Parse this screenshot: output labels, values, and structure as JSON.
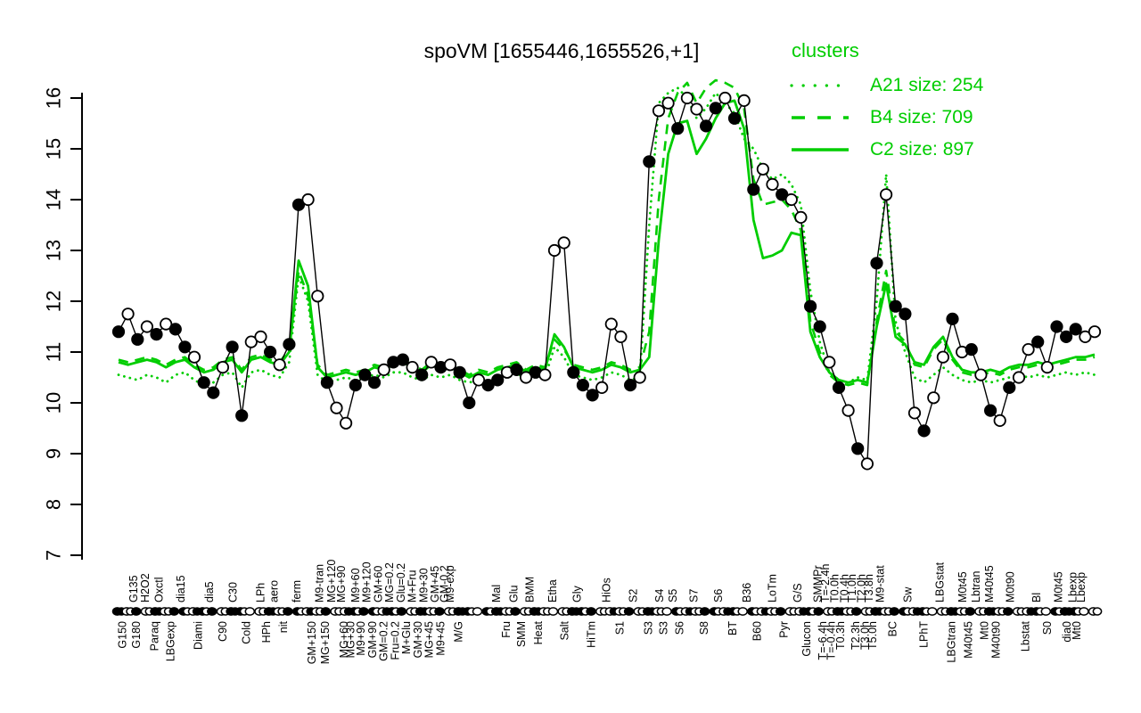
{
  "title": "spoVM [1655446,1655526,+1]",
  "legend": {
    "title": "clusters",
    "entries": [
      {
        "label": "A21 size: 254",
        "style": "dotted"
      },
      {
        "label": "B4 size: 709",
        "style": "dashed"
      },
      {
        "label": "C2 size: 897",
        "style": "solid"
      }
    ]
  },
  "colors": {
    "cluster_green": "#00CD00",
    "gene_black": "#000000",
    "background": "#FFFFFF"
  },
  "chart_data": {
    "type": "line",
    "title": "spoVM [1655446,1655526,+1]",
    "ylabel": "",
    "xlabel": "",
    "ylim": [
      7,
      16
    ],
    "yticks": [
      7,
      8,
      9,
      10,
      11,
      12,
      13,
      14,
      15,
      16
    ],
    "grid": false,
    "legend_position": "top-right",
    "n_samples": 104,
    "series": [
      {
        "name": "gene spoVM",
        "color": "#000000",
        "style": "solid-with-markers",
        "values": [
          11.4,
          11.75,
          11.25,
          11.5,
          11.35,
          11.55,
          11.45,
          11.1,
          10.9,
          10.4,
          10.2,
          10.7,
          11.1,
          9.75,
          11.2,
          11.3,
          11.0,
          10.75,
          11.15,
          13.9,
          14.0,
          12.1,
          10.4,
          9.9,
          9.6,
          10.35,
          10.55,
          10.4,
          10.65,
          10.8,
          10.85,
          10.7,
          10.55,
          10.8,
          10.7,
          10.75,
          10.6,
          10.0,
          10.45,
          10.35,
          10.45,
          10.6,
          10.65,
          10.5,
          10.6,
          10.55,
          13.0,
          13.15,
          10.6,
          10.35,
          10.15,
          10.3,
          11.55,
          11.3,
          10.35,
          10.5,
          14.75,
          15.75,
          15.9,
          15.4,
          16.0,
          15.78,
          15.45,
          15.8,
          16.0,
          15.6,
          15.95,
          14.2,
          14.6,
          14.3,
          14.1,
          14.0,
          13.65,
          11.9,
          11.5,
          10.8,
          10.3,
          9.85,
          9.1,
          8.8,
          12.75,
          14.1,
          11.9,
          11.75,
          9.8,
          9.45,
          10.1,
          10.9,
          11.65,
          11.0,
          11.05,
          10.55,
          9.85,
          9.65,
          10.3,
          10.5,
          11.05,
          11.2,
          10.7,
          11.5,
          11.3,
          11.45,
          11.3,
          11.4
        ],
        "marker_filled": [
          1,
          0,
          1,
          0,
          1,
          0,
          1,
          1,
          0,
          1,
          1,
          0,
          1,
          1,
          0,
          0,
          1,
          0,
          1,
          1,
          0,
          0,
          1,
          0,
          0,
          1,
          1,
          1,
          0,
          1,
          1,
          0,
          1,
          0,
          1,
          0,
          1,
          1,
          0,
          1,
          1,
          0,
          1,
          0,
          1,
          0,
          0,
          0,
          1,
          1,
          1,
          0,
          0,
          0,
          1,
          0,
          1,
          0,
          0,
          1,
          0,
          0,
          1,
          1,
          0,
          1,
          0,
          1,
          0,
          0,
          1,
          0,
          0,
          1,
          1,
          0,
          1,
          0,
          1,
          0,
          1,
          0,
          1,
          1,
          0,
          1,
          0,
          0,
          1,
          0,
          1,
          0,
          1,
          0,
          1,
          0,
          0,
          1,
          0,
          1,
          1,
          1,
          0,
          0
        ]
      },
      {
        "name": "A21 size: 254",
        "color": "#00CD00",
        "style": "dotted",
        "values": [
          10.55,
          10.5,
          10.45,
          10.55,
          10.5,
          10.4,
          10.55,
          10.6,
          10.45,
          10.35,
          10.4,
          10.55,
          10.6,
          10.3,
          10.6,
          10.65,
          10.55,
          10.5,
          10.8,
          12.5,
          12.0,
          10.55,
          10.4,
          10.45,
          10.5,
          10.45,
          10.5,
          10.55,
          10.5,
          10.6,
          10.6,
          10.5,
          10.45,
          10.55,
          10.5,
          10.55,
          10.45,
          10.4,
          10.45,
          10.4,
          10.5,
          10.55,
          10.6,
          10.45,
          10.55,
          10.5,
          11.1,
          10.9,
          10.55,
          10.5,
          10.45,
          10.5,
          10.6,
          10.55,
          10.45,
          10.5,
          13.5,
          15.9,
          16.1,
          16.2,
          16.0,
          15.6,
          15.8,
          16.1,
          15.9,
          15.7,
          15.2,
          15.0,
          14.6,
          14.4,
          14.5,
          14.3,
          13.9,
          12.2,
          11.2,
          10.6,
          10.45,
          10.4,
          10.5,
          10.45,
          12.0,
          14.5,
          11.6,
          11.0,
          10.5,
          10.4,
          10.55,
          10.7,
          10.55,
          10.45,
          10.4,
          10.45,
          10.4,
          10.45,
          10.5,
          10.55,
          10.5,
          10.55,
          10.5,
          10.55,
          10.6,
          10.55,
          10.6,
          10.55
        ]
      },
      {
        "name": "B4 size: 709",
        "color": "#00CD00",
        "style": "dashed",
        "values": [
          10.85,
          10.8,
          10.85,
          10.9,
          10.85,
          10.75,
          10.85,
          10.9,
          10.75,
          10.65,
          10.7,
          10.85,
          10.9,
          10.65,
          10.9,
          10.95,
          10.85,
          10.8,
          11.05,
          12.6,
          12.1,
          10.75,
          10.55,
          10.6,
          10.65,
          10.6,
          10.65,
          10.75,
          10.7,
          10.8,
          10.85,
          10.75,
          10.65,
          10.8,
          10.7,
          10.75,
          10.65,
          10.55,
          10.65,
          10.6,
          10.7,
          10.75,
          10.8,
          10.65,
          10.75,
          10.7,
          11.25,
          11.05,
          10.75,
          10.7,
          10.65,
          10.7,
          10.8,
          10.75,
          10.65,
          10.7,
          11.4,
          14.0,
          15.6,
          16.1,
          16.3,
          15.9,
          16.2,
          16.35,
          16.3,
          16.2,
          15.8,
          14.4,
          13.9,
          13.95,
          14.0,
          13.8,
          13.4,
          11.6,
          11.0,
          10.55,
          10.4,
          10.35,
          10.4,
          10.35,
          11.6,
          12.6,
          11.4,
          11.2,
          10.75,
          10.7,
          11.05,
          11.25,
          10.85,
          10.6,
          10.55,
          10.55,
          10.6,
          10.55,
          10.65,
          10.7,
          10.7,
          10.75,
          10.7,
          10.75,
          10.8,
          10.85,
          10.85,
          10.9
        ]
      },
      {
        "name": "C2 size: 897",
        "color": "#00CD00",
        "style": "solid",
        "values": [
          10.8,
          10.75,
          10.8,
          10.85,
          10.8,
          10.7,
          10.8,
          10.85,
          10.7,
          10.6,
          10.65,
          10.8,
          10.85,
          10.6,
          10.85,
          10.9,
          10.8,
          10.75,
          11.0,
          12.8,
          12.3,
          10.7,
          10.5,
          10.55,
          10.6,
          10.55,
          10.6,
          10.7,
          10.65,
          10.75,
          10.8,
          10.7,
          10.6,
          10.75,
          10.65,
          10.7,
          10.6,
          10.5,
          10.6,
          10.55,
          10.65,
          10.7,
          10.75,
          10.6,
          10.7,
          10.65,
          11.35,
          11.1,
          10.7,
          10.65,
          10.6,
          10.65,
          10.75,
          10.7,
          10.6,
          10.65,
          10.9,
          13.2,
          14.9,
          15.5,
          15.55,
          14.9,
          15.2,
          15.6,
          15.9,
          15.95,
          15.4,
          13.6,
          12.85,
          12.9,
          13.0,
          13.35,
          13.3,
          11.4,
          10.9,
          10.6,
          10.45,
          10.4,
          10.45,
          10.4,
          11.5,
          12.35,
          11.3,
          11.15,
          10.8,
          10.75,
          11.1,
          11.3,
          10.9,
          10.65,
          10.6,
          10.6,
          10.65,
          10.6,
          10.7,
          10.75,
          10.75,
          10.8,
          10.75,
          10.8,
          10.85,
          10.9,
          10.9,
          10.95
        ]
      }
    ],
    "x_labels": [
      {
        "t": "G150",
        "i": 0.4,
        "r": "b"
      },
      {
        "t": "G135",
        "i": 1.6,
        "r": "a"
      },
      {
        "t": "G180",
        "i": 1.9,
        "r": "b"
      },
      {
        "t": "H2O2",
        "i": 2.8,
        "r": "a"
      },
      {
        "t": "Paraq",
        "i": 3.8,
        "r": "b"
      },
      {
        "t": "Oxctl",
        "i": 4.3,
        "r": "a"
      },
      {
        "t": "LBGexp",
        "i": 5.5,
        "r": "b"
      },
      {
        "t": "dia15",
        "i": 6.6,
        "r": "a"
      },
      {
        "t": "Diami",
        "i": 8.4,
        "r": "b"
      },
      {
        "t": "dia5",
        "i": 9.6,
        "r": "a"
      },
      {
        "t": "C90",
        "i": 11.0,
        "r": "b"
      },
      {
        "t": "C30",
        "i": 12.1,
        "r": "a"
      },
      {
        "t": "Cold",
        "i": 13.5,
        "r": "b"
      },
      {
        "t": "LPh",
        "i": 15.0,
        "r": "a"
      },
      {
        "t": "HPh",
        "i": 15.6,
        "r": "b"
      },
      {
        "t": "aero",
        "i": 16.4,
        "r": "a"
      },
      {
        "t": "nit",
        "i": 17.4,
        "r": "b"
      },
      {
        "t": "ferm",
        "i": 18.8,
        "r": "a"
      },
      {
        "t": "GM+150",
        "i": 20.4,
        "r": "b"
      },
      {
        "t": "M9-tran",
        "i": 21.2,
        "r": "a"
      },
      {
        "t": "MG+150",
        "i": 21.8,
        "r": "b"
      },
      {
        "t": "MG+120",
        "i": 22.5,
        "r": "a"
      },
      {
        "t": "MG+90",
        "i": 23.5,
        "r": "a"
      },
      {
        "t": "MG+60",
        "i": 23.8,
        "r": "b"
      },
      {
        "t": "MG+30",
        "i": 24.5,
        "r": "b"
      },
      {
        "t": "M9+60",
        "i": 25.0,
        "r": "a"
      },
      {
        "t": "M9+90",
        "i": 25.6,
        "r": "b"
      },
      {
        "t": "M9+120",
        "i": 26.2,
        "r": "a"
      },
      {
        "t": "GM+90",
        "i": 26.8,
        "r": "b"
      },
      {
        "t": "GM+60",
        "i": 27.4,
        "r": "a"
      },
      {
        "t": "GM=0.2",
        "i": 28.0,
        "r": "b"
      },
      {
        "t": "MG=0.2",
        "i": 28.6,
        "r": "a"
      },
      {
        "t": "Fru=0.2",
        "i": 29.2,
        "r": "b"
      },
      {
        "t": "Glu=0.2",
        "i": 29.8,
        "r": "a"
      },
      {
        "t": "M+Glu",
        "i": 30.4,
        "r": "b"
      },
      {
        "t": "M+Fru",
        "i": 31.0,
        "r": "a"
      },
      {
        "t": "GM+30",
        "i": 31.6,
        "r": "b"
      },
      {
        "t": "M9+30",
        "i": 32.2,
        "r": "a"
      },
      {
        "t": "MG+45",
        "i": 32.8,
        "r": "b"
      },
      {
        "t": "GM+45",
        "i": 33.4,
        "r": "a"
      },
      {
        "t": "M9+45",
        "i": 34.0,
        "r": "b"
      },
      {
        "t": "GM-0.2",
        "i": 34.4,
        "r": "a"
      },
      {
        "t": "M9-exp",
        "i": 35.0,
        "r": "a"
      },
      {
        "t": "M/G",
        "i": 35.9,
        "r": "b"
      },
      {
        "t": "Mal",
        "i": 39.9,
        "r": "a"
      },
      {
        "t": "Fru",
        "i": 40.9,
        "r": "b"
      },
      {
        "t": "Glu",
        "i": 41.7,
        "r": "a"
      },
      {
        "t": "SMM",
        "i": 42.5,
        "r": "b"
      },
      {
        "t": "BMM",
        "i": 43.4,
        "r": "a"
      },
      {
        "t": "Heat",
        "i": 44.3,
        "r": "b"
      },
      {
        "t": "Etha",
        "i": 45.8,
        "r": "a"
      },
      {
        "t": "Salt",
        "i": 47.1,
        "r": "b"
      },
      {
        "t": "Gly",
        "i": 48.4,
        "r": "a"
      },
      {
        "t": "HiTm",
        "i": 49.9,
        "r": "b"
      },
      {
        "t": "HiOs",
        "i": 51.5,
        "r": "a"
      },
      {
        "t": "S1",
        "i": 52.9,
        "r": "b"
      },
      {
        "t": "S2",
        "i": 54.3,
        "r": "a"
      },
      {
        "t": "S3",
        "i": 55.9,
        "r": "b"
      },
      {
        "t": "S4",
        "i": 57.1,
        "r": "a"
      },
      {
        "t": "S3",
        "i": 57.5,
        "r": "b"
      },
      {
        "t": "S5",
        "i": 58.5,
        "r": "a"
      },
      {
        "t": "S6",
        "i": 59.2,
        "r": "b"
      },
      {
        "t": "S7",
        "i": 60.7,
        "r": "a"
      },
      {
        "t": "S8",
        "i": 61.8,
        "r": "b"
      },
      {
        "t": "S6",
        "i": 63.3,
        "r": "a"
      },
      {
        "t": "BT",
        "i": 64.8,
        "r": "b"
      },
      {
        "t": "B36",
        "i": 66.3,
        "r": "a"
      },
      {
        "t": "B60",
        "i": 67.4,
        "r": "b"
      },
      {
        "t": "LoTm",
        "i": 69.0,
        "r": "a"
      },
      {
        "t": "Pyr",
        "i": 70.2,
        "r": "b"
      },
      {
        "t": "G/S",
        "i": 71.7,
        "r": "a"
      },
      {
        "t": "Glucon",
        "i": 72.6,
        "r": "b"
      },
      {
        "t": "SMMPr",
        "i": 73.8,
        "r": "a"
      },
      {
        "t": "T=-6.4h",
        "i": 74.3,
        "r": "b"
      },
      {
        "t": "T=-2.4h",
        "i": 74.6,
        "r": "a"
      },
      {
        "t": "T=-0.4h",
        "i": 75.2,
        "r": "b"
      },
      {
        "t": "T0.0h",
        "i": 75.6,
        "r": "a"
      },
      {
        "t": "T0.3h",
        "i": 76.2,
        "r": "b"
      },
      {
        "t": "T0.4h",
        "i": 76.6,
        "r": "a"
      },
      {
        "t": "T1.0h",
        "i": 77.4,
        "r": "a"
      },
      {
        "t": "T2.3h",
        "i": 77.8,
        "r": "b"
      },
      {
        "t": "T2.0h",
        "i": 78.4,
        "r": "a"
      },
      {
        "t": "T3.0h",
        "i": 78.8,
        "r": "b"
      },
      {
        "t": "T3.8h",
        "i": 79.2,
        "r": "a"
      },
      {
        "t": "T5.0h",
        "i": 79.6,
        "r": "b"
      },
      {
        "t": "M9-stat",
        "i": 80.4,
        "r": "a"
      },
      {
        "t": "BC",
        "i": 81.7,
        "r": "b"
      },
      {
        "t": "Sw",
        "i": 83.3,
        "r": "a"
      },
      {
        "t": "LPhT",
        "i": 85.0,
        "r": "b"
      },
      {
        "t": "LBGstat",
        "i": 86.7,
        "r": "a"
      },
      {
        "t": "LBGtran",
        "i": 87.9,
        "r": "b"
      },
      {
        "t": "M0t45",
        "i": 89.1,
        "r": "a"
      },
      {
        "t": "M40t45",
        "i": 89.7,
        "r": "b"
      },
      {
        "t": "Lbtran",
        "i": 90.5,
        "r": "a"
      },
      {
        "t": "Mt0",
        "i": 91.4,
        "r": "b"
      },
      {
        "t": "M40t45",
        "i": 91.9,
        "r": "a"
      },
      {
        "t": "M40t90",
        "i": 92.6,
        "r": "b"
      },
      {
        "t": "M0t90",
        "i": 94.1,
        "r": "a"
      },
      {
        "t": "Lbstat",
        "i": 95.7,
        "r": "b"
      },
      {
        "t": "Bl",
        "i": 96.9,
        "r": "a"
      },
      {
        "t": "S0",
        "i": 98.0,
        "r": "b"
      },
      {
        "t": "M0t45",
        "i": 99.2,
        "r": "a"
      },
      {
        "t": "dia0",
        "i": 100.1,
        "r": "b"
      },
      {
        "t": "Lbexp",
        "i": 100.7,
        "r": "a"
      },
      {
        "t": "Mt0",
        "i": 101.1,
        "r": "b"
      },
      {
        "t": "Lbexp",
        "i": 101.6,
        "r": "a"
      }
    ]
  }
}
